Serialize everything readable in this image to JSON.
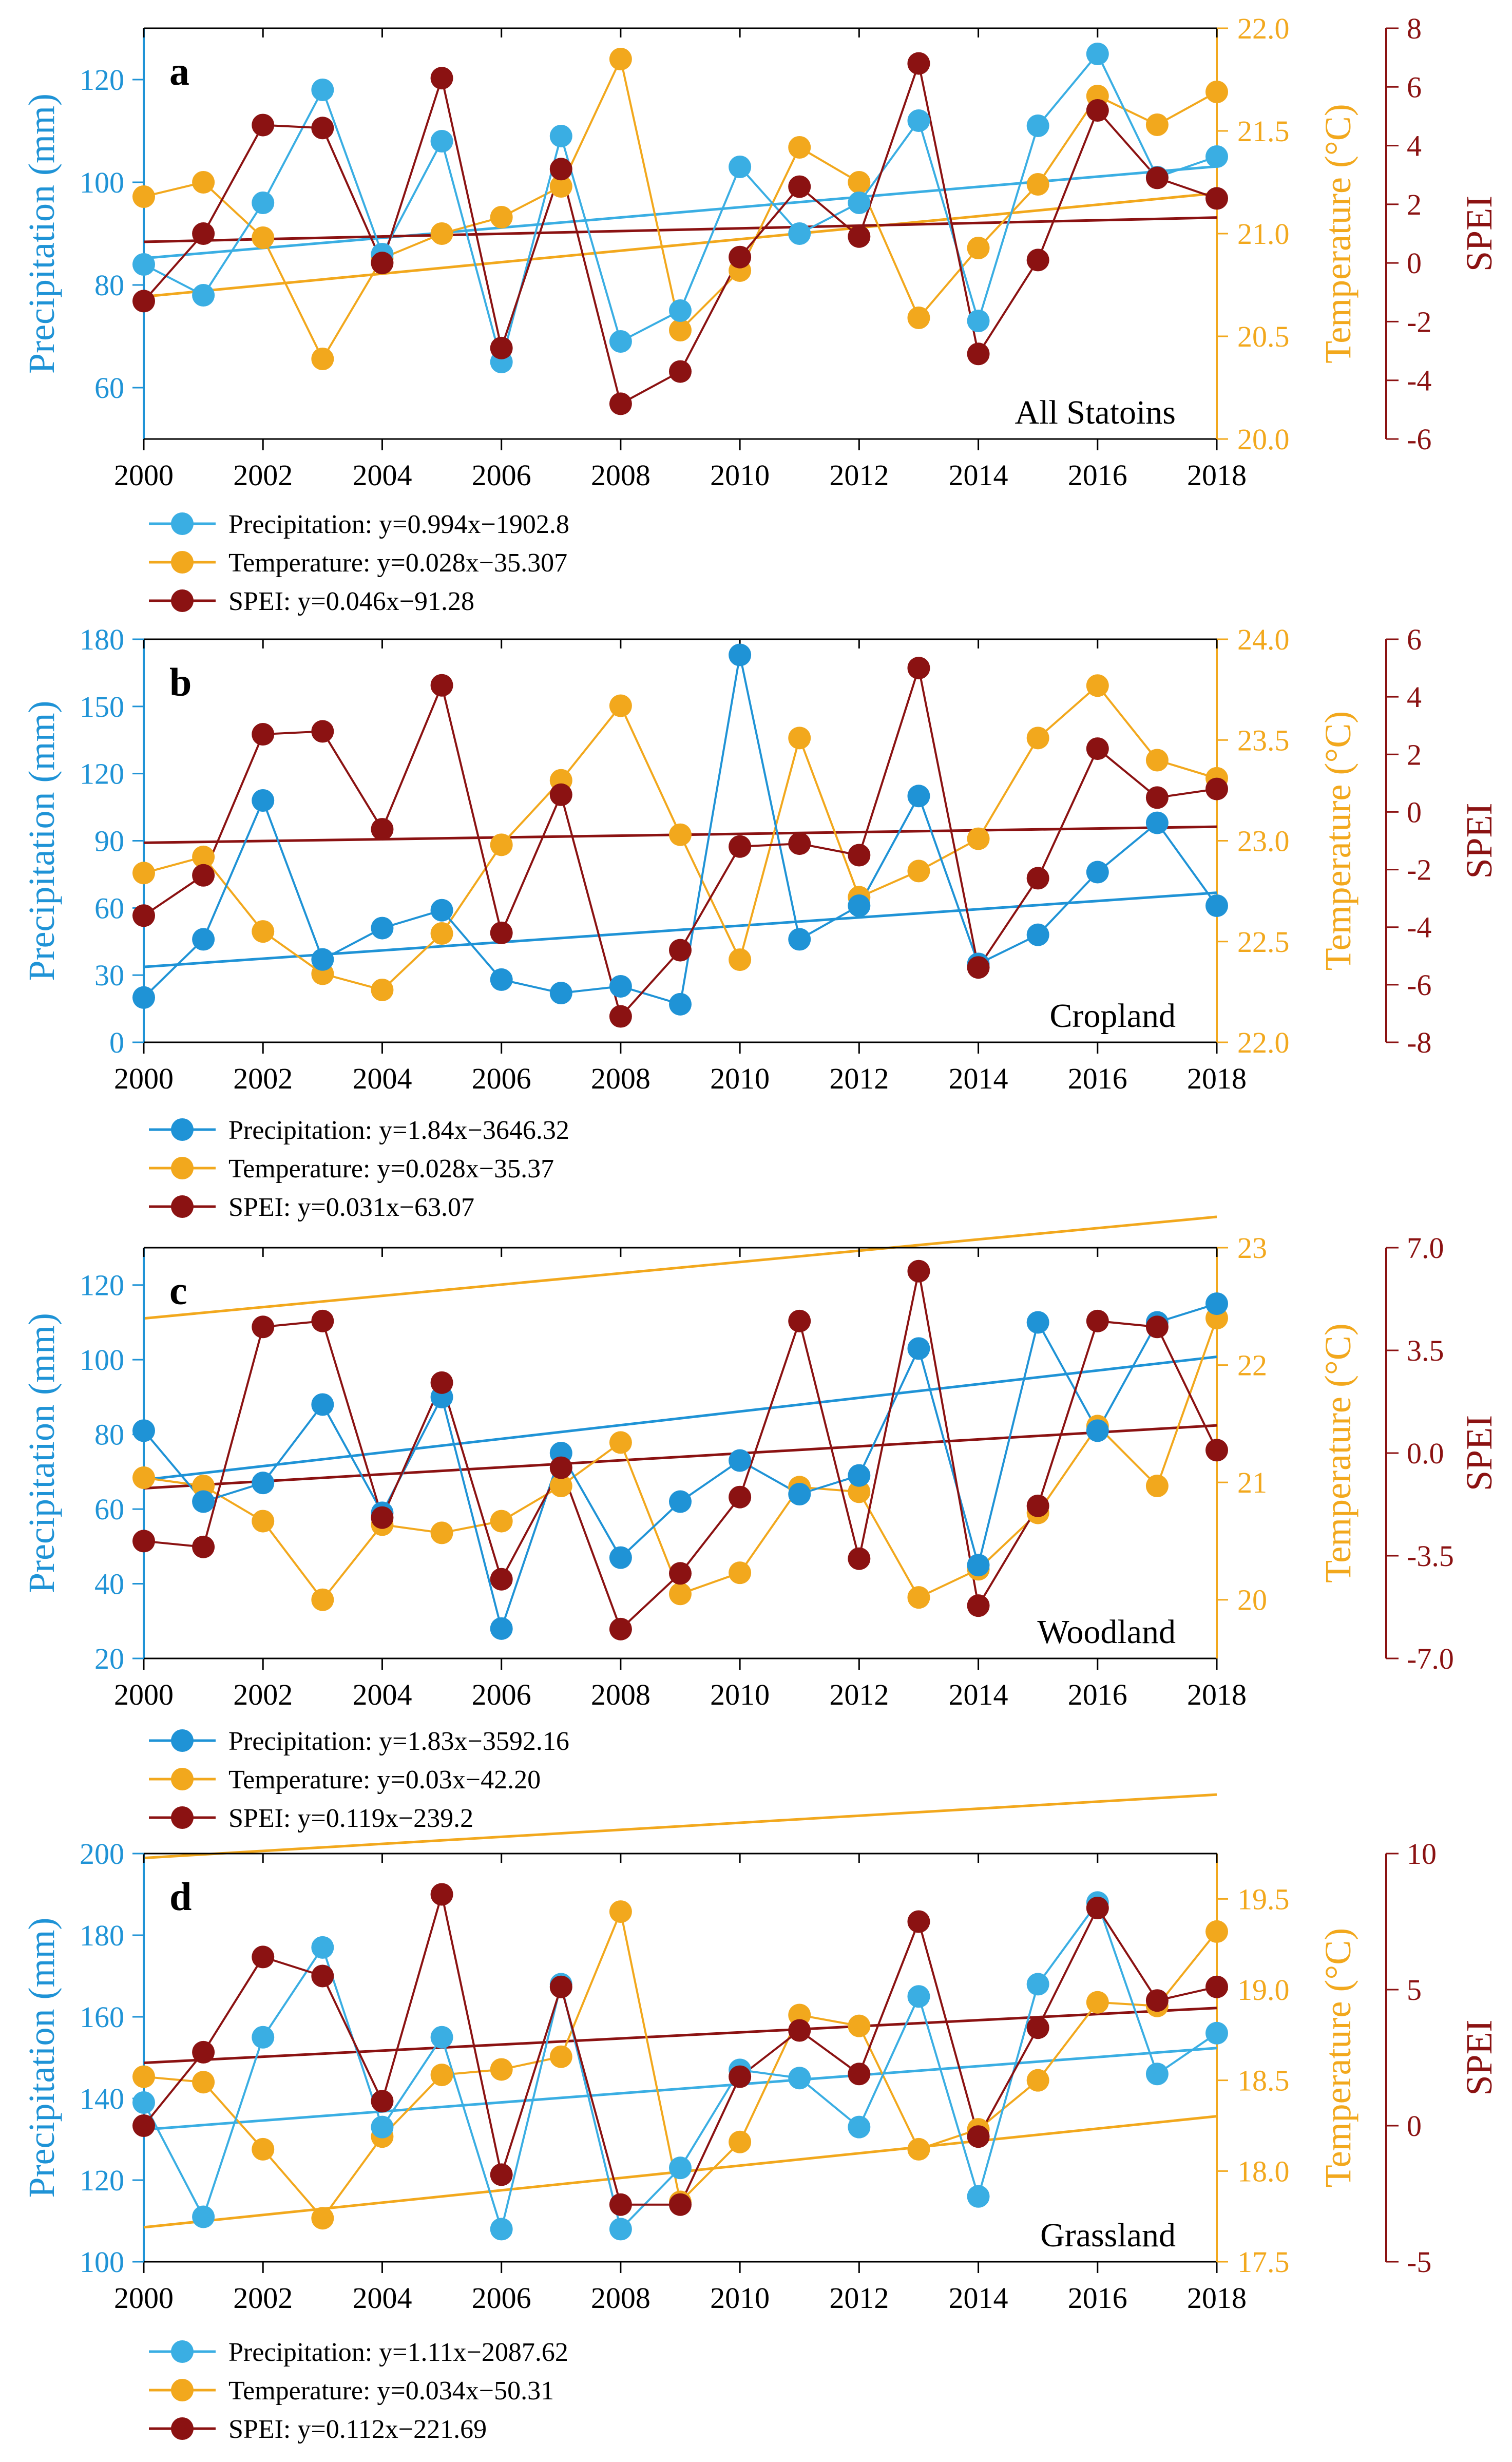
{
  "figure": {
    "colors": {
      "precip": "#3aaee3",
      "precip_dark": "#1f93d6",
      "temp": "#f2a81d",
      "spei": "#8b1212",
      "axis": "#000000"
    },
    "legend_prefix": {
      "precip": "Precipitation: ",
      "temp": "Temperature: ",
      "spei": "SPEI: "
    }
  },
  "chart_data": [
    {
      "type": "line",
      "panel_label": "a",
      "region_label": "All Statoins",
      "x": [
        2000,
        2001,
        2002,
        2003,
        2004,
        2005,
        2006,
        2007,
        2008,
        2009,
        2010,
        2011,
        2012,
        2013,
        2014,
        2015,
        2016,
        2017,
        2018
      ],
      "xticks": [
        "2000",
        "2002",
        "2004",
        "2006",
        "2008",
        "2010",
        "2012",
        "2014",
        "2016",
        "2018"
      ],
      "xlim": [
        2000,
        2018
      ],
      "ylabel": "Precipitation (mm)",
      "y2label": "Temperature (°C)",
      "y3label": "SPEI",
      "ylim": [
        50,
        130
      ],
      "yticks": [
        "60",
        "80",
        "100",
        "120"
      ],
      "y2lim": [
        20.0,
        22.0
      ],
      "y2ticks": [
        "20.0",
        "20.5",
        "21.0",
        "21.5",
        "22.0"
      ],
      "y3lim": [
        -6,
        8
      ],
      "y3ticks": [
        "-6",
        "-4",
        "-2",
        "0",
        "2",
        "4",
        "6",
        "8"
      ],
      "series": [
        {
          "name": "Precipitation",
          "key": "precip",
          "axis": "y",
          "equation": "y=0.994x−1902.8",
          "trend": [
            0.994,
            -1902.8
          ],
          "values": [
            84,
            78,
            96,
            118,
            86,
            108,
            65,
            109,
            69,
            75,
            103,
            90,
            96,
            112,
            73,
            111,
            125,
            101,
            105
          ]
        },
        {
          "name": "Temperature",
          "key": "temp",
          "axis": "y2",
          "equation": "y=0.028x−35.307",
          "trend": [
            0.028,
            -35.307
          ],
          "values": [
            21.18,
            21.25,
            20.98,
            20.39,
            20.88,
            21.0,
            21.08,
            21.23,
            21.85,
            20.53,
            20.82,
            21.42,
            21.25,
            20.59,
            20.93,
            21.24,
            21.67,
            21.53,
            21.69
          ]
        },
        {
          "name": "SPEI",
          "key": "spei",
          "axis": "y3",
          "equation": "y=0.046x−91.28",
          "trend": [
            0.046,
            -91.28
          ],
          "values": [
            -1.3,
            1.0,
            4.7,
            4.6,
            0.0,
            6.3,
            -2.9,
            3.2,
            -4.8,
            -3.7,
            0.2,
            2.6,
            0.9,
            6.8,
            -3.1,
            0.1,
            5.2,
            2.9,
            2.2
          ]
        }
      ]
    },
    {
      "type": "line",
      "panel_label": "b",
      "region_label": "Cropland",
      "x": [
        2000,
        2001,
        2002,
        2003,
        2004,
        2005,
        2006,
        2007,
        2008,
        2009,
        2010,
        2011,
        2012,
        2013,
        2014,
        2015,
        2016,
        2017,
        2018
      ],
      "xticks": [
        "2000",
        "2002",
        "2004",
        "2006",
        "2008",
        "2010",
        "2012",
        "2014",
        "2016",
        "2018"
      ],
      "xlim": [
        2000,
        2018
      ],
      "ylabel": "Precipitation (mm)",
      "y2label": "Temperature (°C)",
      "y3label": "SPEI",
      "ylim": [
        0,
        180
      ],
      "yticks": [
        "0",
        "30",
        "60",
        "90",
        "120",
        "150",
        "180"
      ],
      "y2lim": [
        22.0,
        24.0
      ],
      "y2ticks": [
        "22.0",
        "22.5",
        "23.0",
        "23.5",
        "24.0"
      ],
      "y3lim": [
        -8,
        6
      ],
      "y3ticks": [
        "-8",
        "-6",
        "-4",
        "-2",
        "0",
        "2",
        "4",
        "6"
      ],
      "series": [
        {
          "name": "Precipitation",
          "key": "precip",
          "axis": "y",
          "equation": "y=1.84x−3646.32",
          "trend": [
            1.84,
            -3646.32
          ],
          "values": [
            20,
            46,
            108,
            37,
            51,
            59,
            28,
            22,
            25,
            17,
            173,
            46,
            61,
            110,
            35,
            48,
            76,
            98,
            61
          ]
        },
        {
          "name": "Temperature",
          "key": "temp",
          "axis": "y2",
          "equation": "y=0.028x−35.37",
          "trend": [
            0.028,
            -35.37
          ],
          "values": [
            22.84,
            22.92,
            22.55,
            22.34,
            22.26,
            22.54,
            22.98,
            23.3,
            23.67,
            23.03,
            22.41,
            23.51,
            22.72,
            22.85,
            23.01,
            23.51,
            23.77,
            23.4,
            23.31
          ]
        },
        {
          "name": "SPEI",
          "key": "spei",
          "axis": "y3",
          "equation": "y=0.031x−63.07",
          "trend": [
            0.031,
            -63.07
          ],
          "values": [
            -3.6,
            -2.2,
            2.7,
            2.8,
            -0.6,
            4.4,
            -4.2,
            0.6,
            -7.1,
            -4.8,
            -1.2,
            -1.1,
            -1.5,
            5.0,
            -5.4,
            -2.3,
            2.2,
            0.5,
            0.8
          ]
        }
      ]
    },
    {
      "type": "line",
      "panel_label": "c",
      "region_label": "Woodland",
      "x": [
        2000,
        2001,
        2002,
        2003,
        2004,
        2005,
        2006,
        2007,
        2008,
        2009,
        2010,
        2011,
        2012,
        2013,
        2014,
        2015,
        2016,
        2017,
        2018
      ],
      "xticks": [
        "2000",
        "2002",
        "2004",
        "2006",
        "2008",
        "2010",
        "2012",
        "2014",
        "2016",
        "2018"
      ],
      "xlim": [
        2000,
        2018
      ],
      "ylabel": "Precipitation (mm)",
      "y2label": "Temperature (°C)",
      "y3label": "SPEI",
      "ylim": [
        20,
        130
      ],
      "yticks": [
        "20",
        "40",
        "60",
        "80",
        "100",
        "120"
      ],
      "y2lim": [
        19.5,
        23.0
      ],
      "y2ticks": [
        "20",
        "21",
        "22",
        "23"
      ],
      "y3lim": [
        -7.0,
        7.0
      ],
      "y3ticks": [
        "-7.0",
        "-3.5",
        "0.0",
        "3.5",
        "7.0"
      ],
      "series": [
        {
          "name": "Precipitation",
          "key": "precip",
          "axis": "y",
          "equation": "y=1.83x−3592.16",
          "trend": [
            1.83,
            -3592.16
          ],
          "values": [
            81,
            62,
            67,
            88,
            59,
            90,
            28,
            75,
            47,
            62,
            73,
            64,
            69,
            103,
            45,
            110,
            81,
            110,
            115
          ]
        },
        {
          "name": "Temperature",
          "key": "temp",
          "axis": "y2",
          "equation": "y=0.03x−42.20",
          "trend": [
            0.03,
            -42.2
          ],
          "values": [
            21.04,
            20.97,
            20.67,
            20.0,
            20.64,
            20.57,
            20.67,
            20.97,
            21.34,
            20.05,
            20.23,
            20.96,
            20.92,
            20.02,
            20.26,
            20.74,
            21.48,
            20.97,
            22.4
          ]
        },
        {
          "name": "SPEI",
          "key": "spei",
          "axis": "y3",
          "equation": "y=0.119x−239.2",
          "trend": [
            0.119,
            -239.2
          ],
          "values": [
            -3.0,
            -3.2,
            4.3,
            4.5,
            -2.2,
            2.4,
            -4.3,
            -0.5,
            -6.0,
            -4.1,
            -1.5,
            4.5,
            -3.6,
            6.2,
            -5.2,
            -1.8,
            4.5,
            4.3,
            0.1
          ]
        }
      ]
    },
    {
      "type": "line",
      "panel_label": "d",
      "region_label": "Grassland",
      "x": [
        2000,
        2001,
        2002,
        2003,
        2004,
        2005,
        2006,
        2007,
        2008,
        2009,
        2010,
        2011,
        2012,
        2013,
        2014,
        2015,
        2016,
        2017,
        2018
      ],
      "xticks": [
        "2000",
        "2002",
        "2004",
        "2006",
        "2008",
        "2010",
        "2012",
        "2014",
        "2016",
        "2018"
      ],
      "xlim": [
        2000,
        2018
      ],
      "ylabel": "Precipitation (mm)",
      "y2label": "Temperature (°C)",
      "y3label": "SPEI",
      "ylim": [
        100,
        200
      ],
      "yticks": [
        "100",
        "120",
        "140",
        "160",
        "180",
        "200"
      ],
      "y2lim": [
        17.5,
        19.75
      ],
      "y2ticks": [
        "17.5",
        "18.0",
        "18.5",
        "19.0",
        "19.5"
      ],
      "y3lim": [
        -5,
        10
      ],
      "y3ticks": [
        "-5",
        "0",
        "5",
        "10"
      ],
      "series": [
        {
          "name": "Precipitation",
          "key": "precip",
          "axis": "y",
          "equation": "y=1.11x−2087.62",
          "trend": [
            1.11,
            -2087.62
          ],
          "values": [
            139,
            111,
            155,
            177,
            133,
            155,
            108,
            168,
            108,
            123,
            147,
            145,
            133,
            165,
            116,
            168,
            188,
            146,
            156
          ]
        },
        {
          "name": "Temperature",
          "key": "temp",
          "axis": "y2",
          "equation": "y=0.034x−50.31",
          "trend": [
            0.034,
            -50.31
          ],
          "values": [
            18.52,
            18.49,
            18.12,
            17.74,
            18.19,
            18.53,
            18.56,
            18.63,
            19.43,
            17.83,
            18.16,
            18.86,
            18.8,
            18.12,
            18.23,
            18.5,
            18.93,
            18.91,
            19.32
          ]
        },
        {
          "name": "SPEI",
          "key": "spei",
          "axis": "y3",
          "equation": "y=0.112x−221.69",
          "trend": [
            0.112,
            -221.69
          ],
          "values": [
            0.0,
            2.7,
            6.2,
            5.5,
            0.9,
            8.5,
            -1.8,
            5.1,
            -2.9,
            -2.9,
            1.8,
            3.5,
            1.9,
            7.5,
            -0.4,
            3.6,
            8.0,
            4.6,
            5.1
          ]
        }
      ]
    }
  ]
}
